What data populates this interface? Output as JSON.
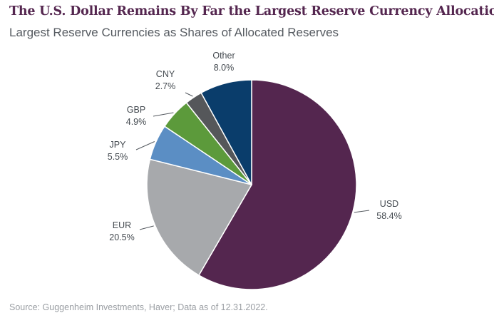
{
  "chart_data": {
    "type": "pie",
    "title": "The U.S. Dollar Remains By Far the Largest Reserve Currency Allocation",
    "subtitle": "Largest Reserve Currencies as Shares of Allocated Reserves",
    "source": "Source: Guggenheim Investments, Haver; Data as of 12.31.2022.",
    "slices": [
      {
        "label": "USD",
        "value": 58.4,
        "display": "58.4%",
        "color": "#54264f"
      },
      {
        "label": "EUR",
        "value": 20.5,
        "display": "20.5%",
        "color": "#a7a9ac"
      },
      {
        "label": "JPY",
        "value": 5.5,
        "display": "5.5%",
        "color": "#5b8ec4"
      },
      {
        "label": "GBP",
        "value": 4.9,
        "display": "4.9%",
        "color": "#5c9a3b"
      },
      {
        "label": "CNY",
        "value": 2.7,
        "display": "2.7%",
        "color": "#55575a"
      },
      {
        "label": "Other",
        "value": 8.0,
        "display": "8.0%",
        "color": "#0a3d6b"
      }
    ],
    "start": "12 o'clock",
    "direction": "clockwise"
  }
}
